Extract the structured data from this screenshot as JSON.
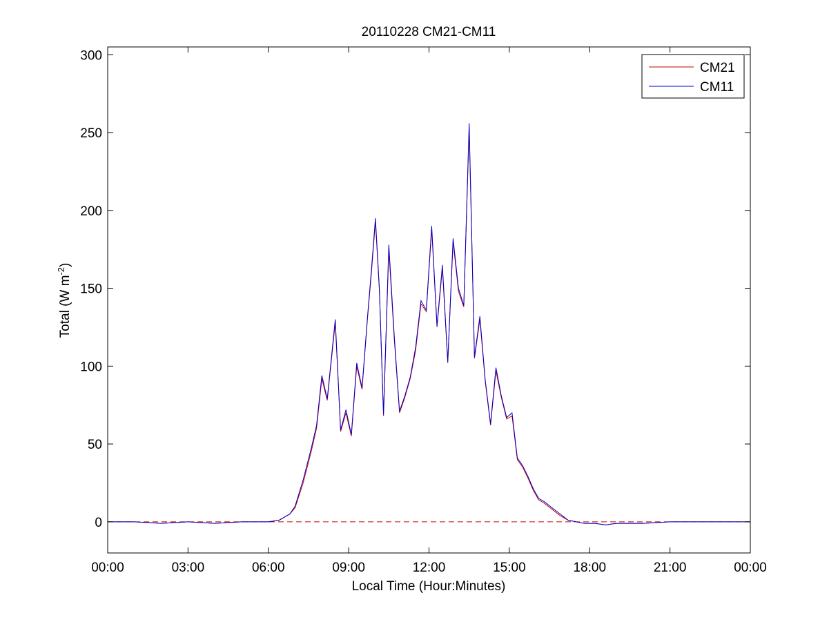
{
  "chart_data": {
    "type": "line",
    "title": "20110228 CM21-CM11",
    "xlabel": "Local Time (Hour:Minutes)",
    "ylabel": {
      "base": "Total (W m",
      "superscript": "-2",
      "suffix": ")"
    },
    "x_unit": "hours of day",
    "xlim": [
      0,
      24
    ],
    "ylim": [
      -20,
      305
    ],
    "x_ticks": [
      0,
      3,
      6,
      9,
      12,
      15,
      18,
      21,
      24
    ],
    "x_tick_labels": [
      "00:00",
      "03:00",
      "06:00",
      "09:00",
      "12:00",
      "15:00",
      "18:00",
      "21:00",
      "00:00"
    ],
    "y_ticks": [
      0,
      50,
      100,
      150,
      200,
      250,
      300
    ],
    "y_tick_labels": [
      "0",
      "50",
      "100",
      "150",
      "200",
      "250",
      "300"
    ],
    "grid": false,
    "legend_position": "top-right",
    "reference_line": {
      "y": 0,
      "color": "#cc0000",
      "style": "dashed"
    },
    "series": [
      {
        "name": "CM21",
        "color": "#cc0000",
        "x": [
          0,
          1,
          2,
          3,
          4,
          5,
          6,
          6.4,
          6.8,
          7.0,
          7.3,
          7.6,
          7.8,
          8.0,
          8.2,
          8.5,
          8.7,
          8.9,
          9.1,
          9.3,
          9.5,
          9.7,
          9.85,
          10.0,
          10.15,
          10.3,
          10.5,
          10.7,
          10.9,
          11.1,
          11.3,
          11.5,
          11.7,
          11.9,
          12.1,
          12.3,
          12.5,
          12.7,
          12.9,
          13.1,
          13.3,
          13.5,
          13.7,
          13.9,
          14.1,
          14.3,
          14.5,
          14.7,
          14.9,
          15.1,
          15.3,
          15.5,
          15.7,
          15.9,
          16.1,
          16.3,
          16.6,
          16.9,
          17.2,
          17.5,
          17.8,
          18.2,
          18.6,
          19.0,
          19.5,
          20.0,
          21.0,
          22.0,
          23.0,
          24.0
        ],
        "y": [
          0,
          0,
          -1,
          0,
          -1,
          0,
          0,
          1,
          5,
          9,
          25,
          45,
          60,
          92,
          78,
          128,
          58,
          70,
          55,
          100,
          85,
          130,
          160,
          193,
          148,
          68,
          175,
          118,
          70,
          80,
          92,
          110,
          140,
          135,
          188,
          125,
          163,
          102,
          180,
          148,
          138,
          253,
          105,
          130,
          90,
          62,
          97,
          80,
          66,
          68,
          40,
          35,
          28,
          20,
          14,
          12,
          8,
          4,
          1,
          0,
          -1,
          -1,
          -2,
          -1,
          -1,
          -1,
          0,
          0,
          0,
          0
        ]
      },
      {
        "name": "CM11",
        "color": "#0000cc",
        "x": [
          0,
          1,
          2,
          3,
          4,
          5,
          6,
          6.4,
          6.8,
          7.0,
          7.3,
          7.6,
          7.8,
          8.0,
          8.2,
          8.5,
          8.7,
          8.9,
          9.1,
          9.3,
          9.5,
          9.7,
          9.85,
          10.0,
          10.15,
          10.3,
          10.5,
          10.7,
          10.9,
          11.1,
          11.3,
          11.5,
          11.7,
          11.9,
          12.1,
          12.3,
          12.5,
          12.7,
          12.9,
          13.1,
          13.3,
          13.5,
          13.7,
          13.9,
          14.1,
          14.3,
          14.5,
          14.7,
          14.9,
          15.1,
          15.3,
          15.5,
          15.7,
          15.9,
          16.1,
          16.3,
          16.6,
          16.9,
          17.2,
          17.5,
          17.8,
          18.2,
          18.6,
          19.0,
          19.5,
          20.0,
          21.0,
          22.0,
          23.0,
          24.0
        ],
        "y": [
          0,
          0,
          -1,
          0,
          -1,
          0,
          0,
          1,
          5,
          10,
          27,
          47,
          62,
          94,
          79,
          130,
          59,
          72,
          56,
          102,
          86,
          131,
          162,
          195,
          149,
          69,
          178,
          120,
          71,
          81,
          93,
          112,
          142,
          136,
          190,
          126,
          165,
          103,
          182,
          150,
          139,
          256,
          106,
          132,
          91,
          63,
          99,
          81,
          67,
          70,
          41,
          36,
          29,
          21,
          15,
          13,
          9,
          5,
          1,
          0,
          -1,
          -1,
          -2,
          -1,
          -1,
          -1,
          0,
          0,
          0,
          0
        ]
      }
    ]
  }
}
